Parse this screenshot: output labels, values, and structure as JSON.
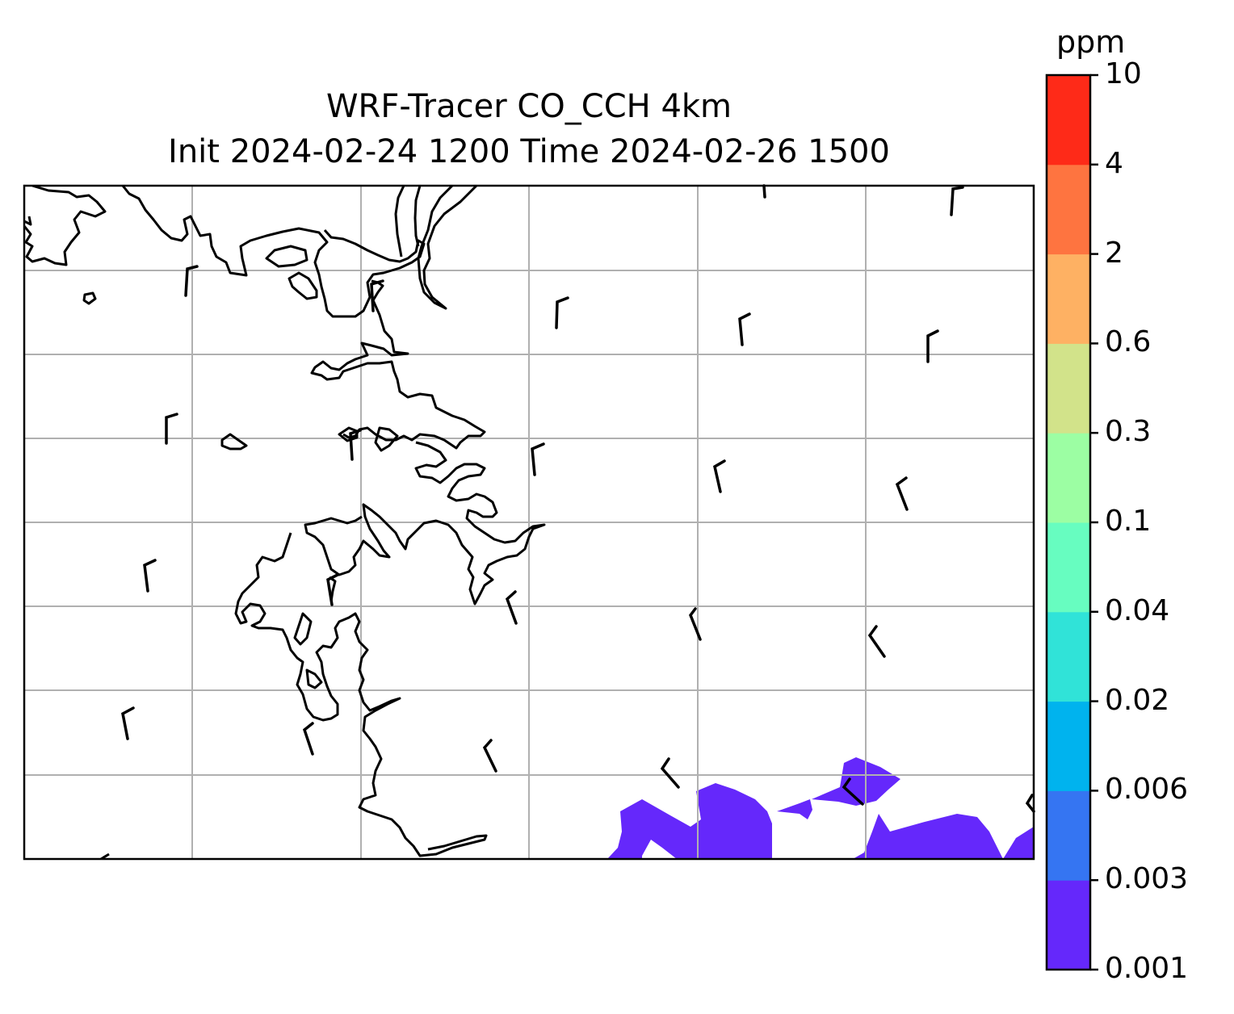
{
  "title": {
    "line1": "WRF-Tracer CO_CCH 4km",
    "line2": "Init 2024-02-24 1200 Time 2024-02-26 1500"
  },
  "colorbar": {
    "units": "ppm",
    "levels": [
      "0.001",
      "0.003",
      "0.006",
      "0.02",
      "0.04",
      "0.1",
      "0.3",
      "0.6",
      "2",
      "4",
      "10"
    ],
    "colors": [
      "#6528fb",
      "#3575f2",
      "#00b3ee",
      "#30e3d8",
      "#67fdc0",
      "#9cfea3",
      "#d2e38a",
      "#feb163",
      "#fe7440",
      "#fe2a18"
    ]
  },
  "colors": {
    "coastline": "#000000",
    "grid": "#b0b0b0",
    "tracer_fill": "#6528fb",
    "barb": "#000000"
  },
  "map": {
    "gridlines": true
  }
}
